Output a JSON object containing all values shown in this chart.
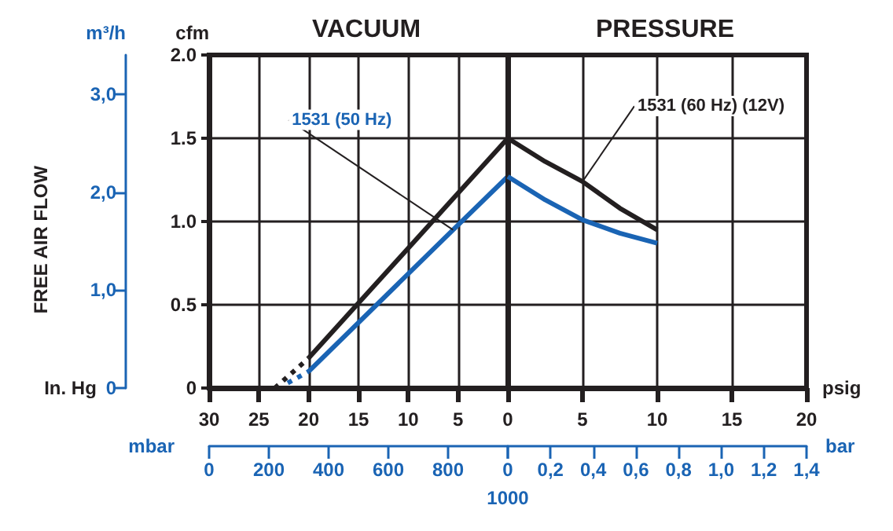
{
  "chart_data": [
    {
      "type": "line",
      "title": "VACUUM",
      "xlabel": "In. Hg",
      "ylabel": "cfm",
      "y2label": "m³/h",
      "x2label": "mbar",
      "annotations": [
        "FREE AIR FLOW",
        "1000"
      ],
      "xlim": [
        30,
        0
      ],
      "xticks": [
        30,
        25,
        20,
        15,
        10,
        5,
        0
      ],
      "ylim": [
        0,
        2
      ],
      "yticks": [
        0,
        0.5,
        {
          "value": 1,
          "label": "1.0"
        },
        1.5,
        {
          "value": 2,
          "label": "2.0"
        }
      ],
      "y2lim": [
        0,
        3.4
      ],
      "y2ticks": [
        0,
        {
          "value": 1,
          "label": "1,0"
        },
        {
          "value": 2,
          "label": "2,0"
        },
        {
          "value": 3,
          "label": "3,0"
        }
      ],
      "x2lim": [
        0,
        1000
      ],
      "x2ticks": [
        0,
        200,
        400,
        600,
        800,
        {
          "value": 1000,
          "label": null
        }
      ],
      "grid": true,
      "marker": "none",
      "line_style": "solid",
      "series": [
        {
          "color": "#231f20",
          "x": [
            20,
            0
          ],
          "values": [
            0.18,
            1.5
          ]
        },
        {
          "color": "#231f20",
          "x": [
            23.4,
            20
          ],
          "values": [
            0,
            0.18
          ],
          "line_style": "dotted"
        },
        {
          "name": "1531 (50 Hz)",
          "color": "#1a64b4",
          "x": [
            20,
            5.5,
            0
          ],
          "values": [
            0.1,
            0.95,
            1.27
          ]
        },
        {
          "color": "#1a64b4",
          "x": [
            22.1,
            20
          ],
          "values": [
            0.03,
            0.1
          ],
          "line_style": "dotted"
        }
      ]
    },
    {
      "type": "line",
      "title": "PRESSURE",
      "xlabel": "psig",
      "x2label": "bar",
      "xlim": [
        0,
        20
      ],
      "xticks": [
        {
          "value": 0,
          "label": null
        },
        5,
        10,
        15,
        20
      ],
      "ylim": [
        0,
        2
      ],
      "yticks": [
        0,
        0.5,
        1,
        1.5,
        2
      ],
      "tick_labels": "x",
      "x2lim": [
        0,
        1.4
      ],
      "x2ticks": [
        0,
        {
          "value": 0.2,
          "label": "0,2"
        },
        {
          "value": 0.4,
          "label": "0,4"
        },
        {
          "value": 0.6,
          "label": "0,6"
        },
        {
          "value": 0.8,
          "label": "0,8"
        },
        {
          "value": 1,
          "label": "1,0"
        },
        {
          "value": 1.2,
          "label": "1,2"
        },
        {
          "value": 1.4,
          "label": "1,4"
        }
      ],
      "grid": true,
      "marker": "none",
      "line_style": "solid",
      "series": [
        {
          "name": "1531 (60 Hz) (12V)",
          "color": "#231f20",
          "x": [
            0,
            2.5,
            5,
            7.5,
            10
          ],
          "values": [
            1.5,
            1.36,
            1.24,
            1.08,
            0.95
          ]
        },
        {
          "color": "#1a64b4",
          "x": [
            0,
            2.5,
            5,
            7.5,
            10
          ],
          "values": [
            1.27,
            1.13,
            1.01,
            0.93,
            0.87
          ]
        }
      ]
    }
  ]
}
